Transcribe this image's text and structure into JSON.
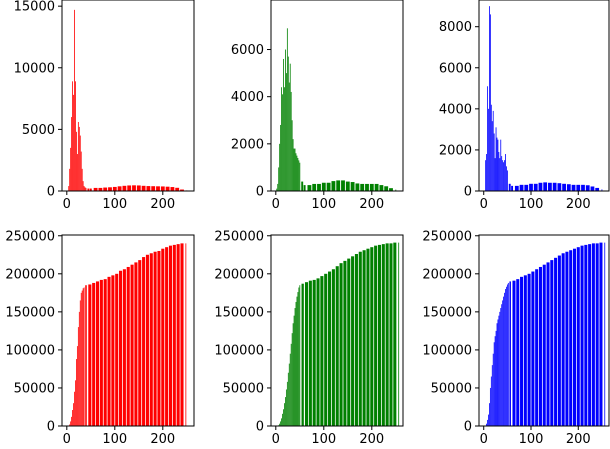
{
  "chart_data": [
    {
      "type": "bar",
      "panel": "histogram-red",
      "color": "#ff0000",
      "xlim": [
        -10,
        265
      ],
      "ylim": [
        0,
        15500
      ],
      "xticks": [
        0,
        100,
        200
      ],
      "yticks": [
        0,
        5000,
        10000,
        15000
      ],
      "ytick_labels": [
        "0",
        "5000",
        "10000",
        "15000"
      ],
      "x": [
        4,
        6,
        8,
        10,
        12,
        14,
        16,
        18,
        20,
        22,
        24,
        26,
        28,
        30,
        32,
        34,
        36,
        38,
        40,
        45,
        50,
        60,
        70,
        80,
        90,
        100,
        110,
        120,
        130,
        140,
        150,
        160,
        170,
        180,
        190,
        200,
        210,
        220,
        230,
        240,
        250
      ],
      "values": [
        400,
        1800,
        3500,
        6000,
        8900,
        7800,
        14700,
        8900,
        4800,
        3000,
        5600,
        5200,
        4500,
        3200,
        1800,
        800,
        400,
        300,
        250,
        200,
        200,
        250,
        250,
        280,
        300,
        330,
        380,
        420,
        450,
        460,
        450,
        420,
        400,
        390,
        380,
        370,
        350,
        320,
        260,
        120,
        50
      ]
    },
    {
      "type": "bar",
      "panel": "histogram-green",
      "color": "#008000",
      "xlim": [
        -10,
        265
      ],
      "ylim": [
        0,
        8100
      ],
      "xticks": [
        0,
        100,
        200
      ],
      "yticks": [
        0,
        2000,
        4000,
        6000
      ],
      "ytick_labels": [
        "0",
        "2000",
        "4000",
        "6000"
      ],
      "x": [
        2,
        4,
        6,
        8,
        10,
        12,
        14,
        16,
        18,
        20,
        22,
        24,
        26,
        28,
        30,
        32,
        34,
        36,
        38,
        40,
        42,
        44,
        46,
        48,
        50,
        55,
        60,
        70,
        80,
        90,
        100,
        110,
        120,
        130,
        140,
        150,
        160,
        170,
        180,
        190,
        200,
        210,
        220,
        230,
        240,
        250
      ],
      "values": [
        100,
        300,
        1000,
        2000,
        2800,
        4400,
        4100,
        5600,
        4400,
        6000,
        5000,
        6900,
        5700,
        4600,
        5400,
        4200,
        3000,
        2200,
        1800,
        1800,
        1600,
        1500,
        1400,
        1300,
        1200,
        400,
        250,
        250,
        300,
        300,
        350,
        350,
        420,
        450,
        450,
        400,
        380,
        320,
        300,
        300,
        300,
        300,
        250,
        200,
        120,
        60
      ]
    },
    {
      "type": "bar",
      "panel": "histogram-blue",
      "color": "#0000ff",
      "xlim": [
        -10,
        265
      ],
      "ylim": [
        0,
        9300
      ],
      "xticks": [
        0,
        100,
        200
      ],
      "yticks": [
        0,
        2000,
        4000,
        6000,
        8000
      ],
      "ytick_labels": [
        "0",
        "2000",
        "4000",
        "6000",
        "8000"
      ],
      "x": [
        4,
        6,
        8,
        10,
        12,
        14,
        16,
        18,
        20,
        22,
        24,
        26,
        28,
        30,
        32,
        34,
        36,
        38,
        40,
        42,
        44,
        46,
        48,
        50,
        55,
        60,
        70,
        80,
        90,
        100,
        110,
        120,
        130,
        140,
        150,
        160,
        170,
        180,
        190,
        200,
        210,
        220,
        230,
        240,
        250
      ],
      "values": [
        1500,
        1800,
        5100,
        4000,
        9000,
        8600,
        4200,
        3400,
        3900,
        2800,
        1600,
        3100,
        2600,
        2500,
        1900,
        1600,
        2500,
        1700,
        1500,
        1400,
        1500,
        1800,
        1200,
        1000,
        350,
        250,
        250,
        300,
        300,
        350,
        350,
        400,
        420,
        400,
        400,
        380,
        350,
        330,
        300,
        300,
        300,
        280,
        220,
        150,
        80
      ]
    },
    {
      "type": "bar",
      "panel": "cumulative-red",
      "color": "#ff0000",
      "xlim": [
        -10,
        265
      ],
      "ylim": [
        0,
        251000
      ],
      "xticks": [
        0,
        100,
        200
      ],
      "yticks": [
        0,
        50000,
        100000,
        150000,
        200000,
        250000
      ],
      "ytick_labels": [
        "0",
        "50000",
        "100000",
        "150000",
        "200000",
        "250000"
      ],
      "x": [
        4,
        6,
        8,
        10,
        12,
        14,
        16,
        18,
        20,
        22,
        24,
        26,
        28,
        30,
        32,
        34,
        36,
        40,
        48,
        56,
        64,
        72,
        80,
        88,
        96,
        104,
        112,
        120,
        128,
        136,
        144,
        152,
        160,
        168,
        176,
        184,
        192,
        200,
        208,
        216,
        224,
        232,
        240,
        248
      ],
      "values": [
        0,
        2000,
        6000,
        12000,
        21000,
        30000,
        45000,
        60000,
        88000,
        105000,
        130000,
        150000,
        165000,
        175000,
        178000,
        181000,
        182000,
        185000,
        186000,
        188000,
        190000,
        192000,
        193000,
        196000,
        198000,
        200000,
        204000,
        206000,
        209000,
        212000,
        215000,
        218000,
        222000,
        225000,
        227000,
        229000,
        230000,
        233000,
        235000,
        237000,
        238000,
        239000,
        240000,
        240000
      ]
    },
    {
      "type": "bar",
      "panel": "cumulative-green",
      "color": "#008000",
      "xlim": [
        -10,
        265
      ],
      "ylim": [
        0,
        251000
      ],
      "xticks": [
        0,
        100,
        200
      ],
      "yticks": [
        0,
        50000,
        100000,
        150000,
        200000,
        250000
      ],
      "ytick_labels": [
        "0",
        "50000",
        "100000",
        "150000",
        "200000",
        "250000"
      ],
      "x": [
        4,
        6,
        8,
        10,
        12,
        14,
        16,
        18,
        20,
        22,
        24,
        26,
        28,
        30,
        32,
        34,
        36,
        38,
        40,
        42,
        44,
        46,
        48,
        50,
        56,
        64,
        72,
        80,
        88,
        96,
        104,
        112,
        120,
        128,
        136,
        144,
        152,
        160,
        168,
        176,
        184,
        192,
        200,
        208,
        216,
        224,
        232,
        240,
        248,
        256
      ],
      "values": [
        0,
        1000,
        3000,
        6000,
        10000,
        16000,
        22000,
        30000,
        38000,
        48000,
        58000,
        70000,
        82000,
        95000,
        108000,
        122000,
        135000,
        145000,
        155000,
        163000,
        170000,
        176000,
        182000,
        185000,
        187000,
        189000,
        191000,
        192000,
        194000,
        197000,
        200000,
        203000,
        206000,
        210000,
        214000,
        217000,
        220000,
        223000,
        226000,
        229000,
        231000,
        233000,
        235000,
        237000,
        238000,
        239000,
        240000,
        240000,
        241000,
        241000
      ]
    },
    {
      "type": "bar",
      "panel": "cumulative-blue",
      "color": "#0000ff",
      "xlim": [
        -10,
        265
      ],
      "ylim": [
        0,
        251000
      ],
      "xticks": [
        0,
        100,
        200
      ],
      "yticks": [
        0,
        50000,
        100000,
        150000,
        200000,
        250000
      ],
      "ytick_labels": [
        "0",
        "50000",
        "100000",
        "150000",
        "200000",
        "250000"
      ],
      "x": [
        4,
        6,
        8,
        10,
        12,
        14,
        16,
        18,
        20,
        22,
        24,
        26,
        28,
        30,
        32,
        34,
        36,
        38,
        40,
        42,
        44,
        46,
        48,
        50,
        52,
        56,
        64,
        72,
        80,
        88,
        96,
        104,
        112,
        120,
        128,
        136,
        144,
        152,
        160,
        168,
        176,
        184,
        192,
        200,
        208,
        216,
        224,
        232,
        240,
        248,
        256
      ],
      "values": [
        0,
        3000,
        8000,
        15000,
        30000,
        50000,
        65000,
        80000,
        95000,
        110000,
        118000,
        125000,
        135000,
        140000,
        145000,
        150000,
        155000,
        160000,
        165000,
        170000,
        175000,
        180000,
        183000,
        186000,
        188000,
        190000,
        191000,
        193000,
        196000,
        198000,
        200000,
        203000,
        206000,
        209000,
        212000,
        215000,
        218000,
        221000,
        224000,
        227000,
        229000,
        231000,
        233000,
        235000,
        237000,
        238000,
        239000,
        240000,
        240000,
        241000,
        241000
      ]
    }
  ]
}
